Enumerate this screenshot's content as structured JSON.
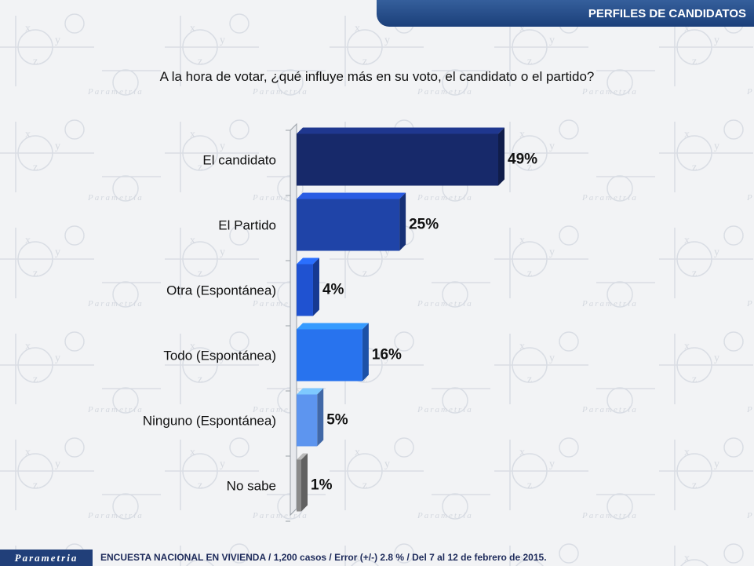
{
  "header": {
    "title": "PERFILES DE CANDIDATOS"
  },
  "question": "A la hora de votar, ¿qué influye más en su voto, el candidato o el partido?",
  "watermark": {
    "brand": "Parametria"
  },
  "footer": {
    "logo": "Parametria",
    "note": "ENCUESTA NACIONAL EN VIVIENDA / 1,200 casos / Error (+/-) 2.8 % / Del 7 al 12 de febrero de 2015."
  },
  "colors": {
    "header": "#1f4382",
    "bars": [
      "#17296a",
      "#1f44a8",
      "#1f52d1",
      "#2873ee",
      "#5d95ef",
      "#8a8a8a"
    ]
  },
  "chart_data": {
    "type": "bar",
    "orientation": "horizontal",
    "categories": [
      "El candidato",
      "El Partido",
      "Otra (Espontánea)",
      "Todo (Espontánea)",
      "Ninguno (Espontánea)",
      "No sabe"
    ],
    "values": [
      49,
      25,
      4,
      16,
      5,
      1
    ],
    "value_labels": [
      "49%",
      "25%",
      "4%",
      "16%",
      "5%",
      "1%"
    ],
    "unit": "%",
    "title": "",
    "xlabel": "",
    "ylabel": "",
    "xlim": [
      0,
      50
    ],
    "grid": false,
    "legend": "none"
  }
}
